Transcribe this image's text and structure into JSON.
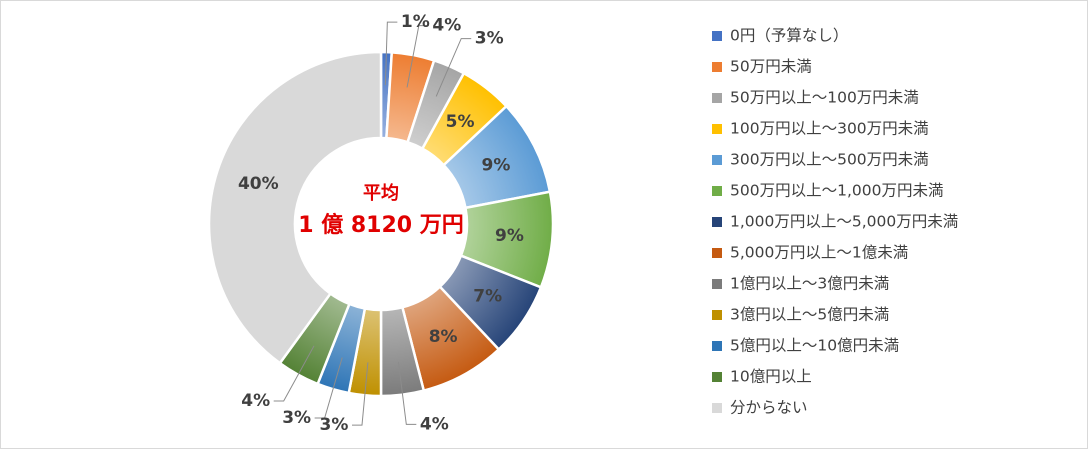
{
  "chart_data": {
    "type": "pie",
    "variant": "donut",
    "center_label": {
      "line1": "平均",
      "line2": "1 億 8120 万円"
    },
    "legend_position": "right",
    "slices": [
      {
        "name": "0円（予算なし）",
        "value": 1,
        "label": "1%",
        "color": "#4472c4"
      },
      {
        "name": "50万円未満",
        "value": 4,
        "label": "4%",
        "color": "#ed7d31"
      },
      {
        "name": "50万円以上～100万円未満",
        "value": 3,
        "label": "3%",
        "color": "#a5a5a5"
      },
      {
        "name": "100万円以上～300万円未満",
        "value": 5,
        "label": "5%",
        "color": "#ffc000"
      },
      {
        "name": "300万円以上～500万円未満",
        "value": 9,
        "label": "9%",
        "color": "#5b9bd5"
      },
      {
        "name": "500万円以上～1,000万円未満",
        "value": 9,
        "label": "9%",
        "color": "#70ad47"
      },
      {
        "name": "1,000万円以上～5,000万円未満",
        "value": 7,
        "label": "7%",
        "color": "#264478"
      },
      {
        "name": "5,000万円以上～1億未満",
        "value": 8,
        "label": "8%",
        "color": "#c55a11"
      },
      {
        "name": "1億円以上～3億円未満",
        "value": 4,
        "label": "4%",
        "color": "#7b7b7b"
      },
      {
        "name": "3億円以上～5億円未満",
        "value": 3,
        "label": "3%",
        "color": "#bf9000"
      },
      {
        "name": "5億円以上～10億円未満",
        "value": 3,
        "label": "3%",
        "color": "#2e75b6"
      },
      {
        "name": "10億円以上",
        "value": 4,
        "label": "4%",
        "color": "#548235"
      },
      {
        "name": "分からない",
        "value": 40,
        "label": "40%",
        "color": "#d9d9d9"
      }
    ]
  }
}
